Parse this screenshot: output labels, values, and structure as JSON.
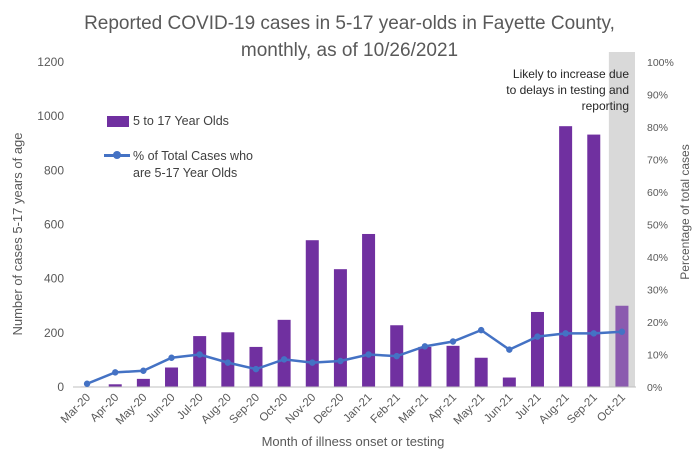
{
  "chart_data": {
    "type": "bar",
    "title_line1": "Reported COVID-19 cases in 5-17 year-olds in Fayette County,",
    "title_line2": "monthly, as of 10/26/2021",
    "xlabel": "Month of illness onset or testing",
    "ylabel": "Number of cases 5-17 years of age",
    "y2label": "Percentage of total cases",
    "ylim": [
      0,
      1200
    ],
    "y2lim": [
      0,
      100
    ],
    "yticks": [
      "0",
      "200",
      "400",
      "600",
      "800",
      "1000",
      "1200"
    ],
    "y2ticks": [
      "0%",
      "10%",
      "20%",
      "30%",
      "40%",
      "50%",
      "60%",
      "70%",
      "80%",
      "90%",
      "100%"
    ],
    "categories": [
      "Mar-20",
      "Apr-20",
      "May-20",
      "Jun-20",
      "Jul-20",
      "Aug-20",
      "Sep-20",
      "Oct-20",
      "Nov-20",
      "Dec-20",
      "Jan-21",
      "Feb-21",
      "Mar-21",
      "Apr-21",
      "May-21",
      "Jun-21",
      "Jul-21",
      "Aug-21",
      "Sep-21",
      "Oct-21"
    ],
    "series": [
      {
        "name": "5 to 17 Year Olds",
        "kind": "bar",
        "axis": "left",
        "color": "#7030a0",
        "values": [
          2,
          10,
          30,
          72,
          188,
          202,
          148,
          248,
          542,
          435,
          565,
          228,
          148,
          152,
          108,
          35,
          277,
          963,
          932,
          300
        ]
      },
      {
        "name": "% of Total Cases who are 5-17 Year Olds",
        "kind": "line",
        "axis": "right",
        "color": "#4472c4",
        "values": [
          1,
          4.5,
          5,
          9,
          10,
          7.5,
          5.5,
          8.5,
          7.5,
          8,
          10,
          9.5,
          12.5,
          14,
          17.5,
          11.5,
          15.5,
          16.5,
          16.5,
          17
        ]
      }
    ],
    "shaded_category": "Oct-21",
    "shade_color": "#d9d9d9",
    "annotation": [
      "Likely to increase due",
      "to delays in testing and",
      "reporting"
    ],
    "legend": [
      "5 to 17 Year Olds",
      "% of Total Cases who are 5-17 Year Olds"
    ],
    "legend_position": "upper-left",
    "grid": false
  }
}
